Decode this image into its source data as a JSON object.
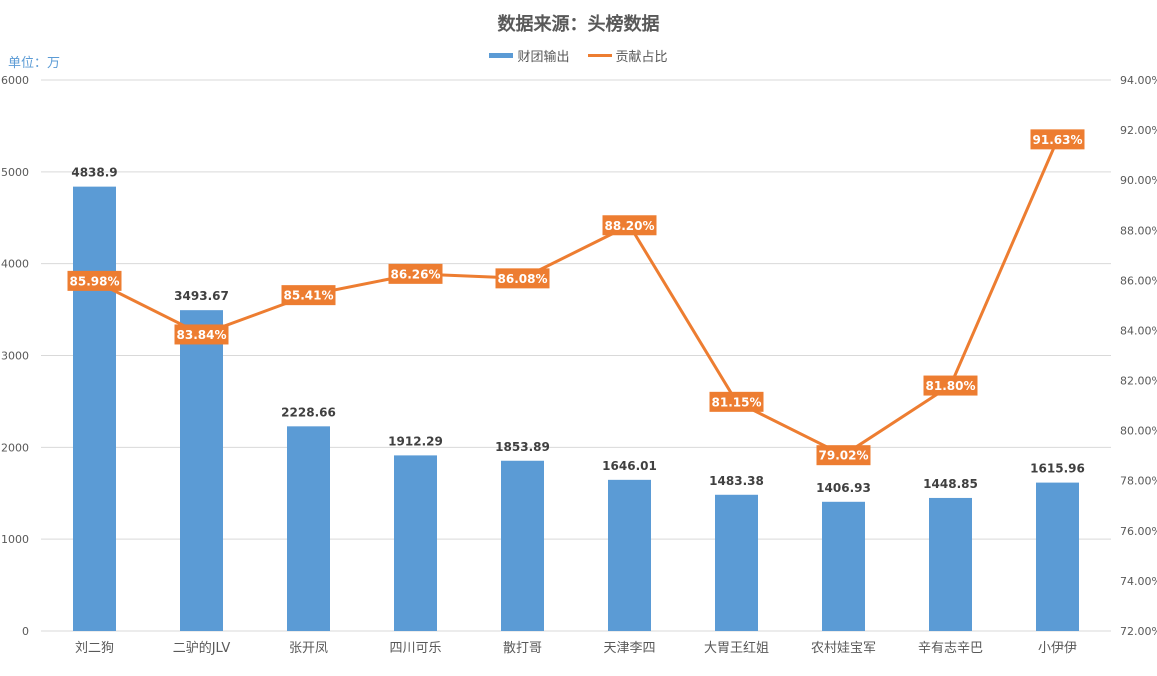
{
  "title": "数据来源：头榜数据",
  "unit_label": "单位：万",
  "legend": [
    {
      "label": "财团输出",
      "type": "bar",
      "color": "#5b9bd5"
    },
    {
      "label": "贡献占比",
      "type": "line",
      "color": "#ed7d31"
    }
  ],
  "colors": {
    "bar": "#5b9bd5",
    "line": "#ed7d31",
    "grid": "#d9d9d9",
    "axis_text": "#595959",
    "unit_text": "#5b9bd5"
  },
  "chart_data": {
    "type": "bar+line",
    "title": "数据来源：头榜数据",
    "ylabel": "单位：万",
    "categories": [
      "刘二狗",
      "二驴的JLV",
      "张开凤",
      "四川可乐",
      "散打哥",
      "天津李四",
      "大胃王红姐",
      "农村娃宝军",
      "辛有志辛巴",
      "小伊伊"
    ],
    "series": [
      {
        "name": "财团输出",
        "type": "bar",
        "axis": "left",
        "values": [
          4838.9,
          3493.67,
          2228.66,
          1912.29,
          1853.89,
          1646.01,
          1483.38,
          1406.93,
          1448.85,
          1615.96
        ],
        "labels": [
          "4838.9",
          "3493.67",
          "2228.66",
          "1912.29",
          "1853.89",
          "1646.01",
          "1483.38",
          "1406.93",
          "1448.85",
          "1615.96"
        ]
      },
      {
        "name": "贡献占比",
        "type": "line",
        "axis": "right",
        "values": [
          85.98,
          83.84,
          85.41,
          86.26,
          86.08,
          88.2,
          81.15,
          79.02,
          81.8,
          91.63
        ],
        "labels": [
          "85.98%",
          "83.84%",
          "85.41%",
          "86.26%",
          "86.08%",
          "88.20%",
          "81.15%",
          "79.02%",
          "81.80%",
          "91.63%"
        ]
      }
    ],
    "left_axis": {
      "min": 0,
      "max": 6000,
      "ticks": [
        "0",
        "1000",
        "2000",
        "3000",
        "4000",
        "5000",
        "6000"
      ]
    },
    "right_axis": {
      "min": 72,
      "max": 94,
      "ticks": [
        "72.00%",
        "74.00%",
        "76.00%",
        "78.00%",
        "80.00%",
        "82.00%",
        "84.00%",
        "86.00%",
        "88.00%",
        "90.00%",
        "92.00%",
        "94.00%"
      ]
    },
    "grid": true,
    "legend_position": "top"
  }
}
